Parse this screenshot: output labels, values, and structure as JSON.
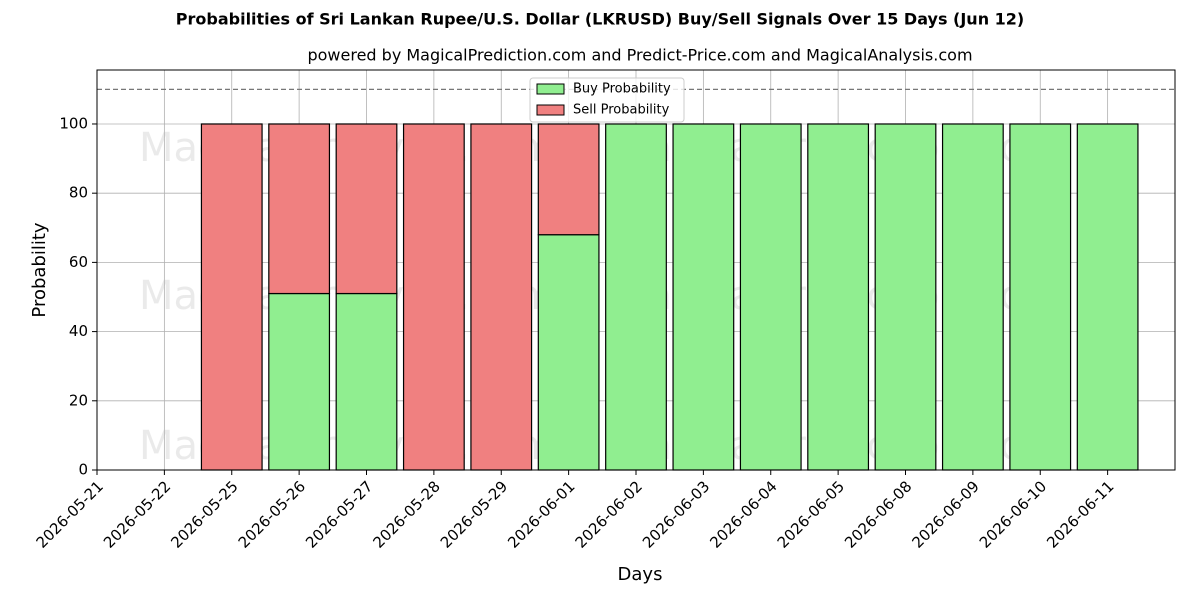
{
  "chart_data": {
    "type": "stacked_bar",
    "title": "Probabilities of Sri Lankan Rupee/U.S. Dollar (LKRUSD) Buy/Sell Signals Over 15 Days (Jun 12)",
    "subtitle": "powered by MagicalPrediction.com and Predict-Price.com and MagicalAnalysis.com",
    "x_label": "Days",
    "y_label": "Probability",
    "categories": [
      "2026-05-21",
      "2026-05-22",
      "2026-05-25",
      "2026-05-26",
      "2026-05-27",
      "2026-05-28",
      "2026-05-29",
      "2026-06-01",
      "2026-06-02",
      "2026-06-03",
      "2026-06-04",
      "2026-06-05",
      "2026-06-08",
      "2026-06-09",
      "2026-06-10",
      "2026-06-11"
    ],
    "series": [
      {
        "name": "Buy Probability",
        "color": "#90ee90",
        "values": [
          null,
          null,
          0,
          51,
          51,
          0,
          0,
          68,
          100,
          100,
          100,
          100,
          100,
          100,
          100,
          100
        ]
      },
      {
        "name": "Sell Probability",
        "color": "#f08080",
        "values": [
          null,
          null,
          100,
          49,
          49,
          100,
          100,
          32,
          0,
          0,
          0,
          0,
          0,
          0,
          0,
          0
        ]
      }
    ],
    "ylim": [
      0,
      115.6
    ],
    "yticks": [
      0,
      20,
      40,
      60,
      80,
      100
    ],
    "threshold_line": 110,
    "grid": true,
    "legend": "upper center",
    "watermarks": [
      "MagicalAnalysis.com",
      "MagicalPrediction.com"
    ]
  }
}
